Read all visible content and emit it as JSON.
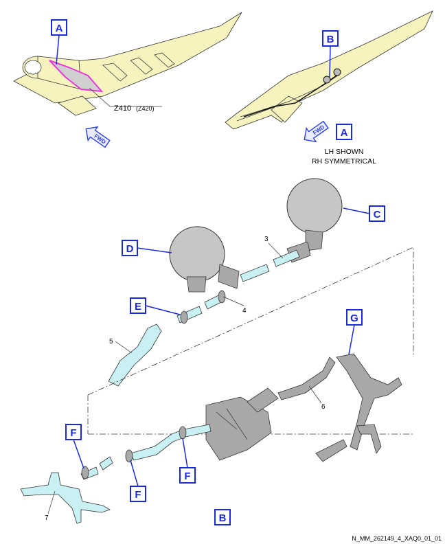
{
  "callouts": {
    "a_top": "A",
    "b_top": "B",
    "a_view": "A",
    "c": "C",
    "d": "D",
    "e": "E",
    "g": "G",
    "f1": "F",
    "f2": "F",
    "f3": "F",
    "b_view": "B"
  },
  "zone_label": "Z410",
  "zone_alt": "(Z420)",
  "fwd_label": "FWD",
  "view_note": {
    "line1": "LH SHOWN",
    "line2": "RH SYMMETRICAL"
  },
  "item_numbers": {
    "n3": "3",
    "n4": "4",
    "n5": "5",
    "n6": "6",
    "n7": "7"
  },
  "figure_id": "N_MM_262149_4_XAQ0_01_01",
  "colors": {
    "callout_blue": "#1a2bd6",
    "wing_yellow": "#f6f3bf",
    "duct_cyan": "#c9f1f3",
    "highlight_magenta": "#e43ad8",
    "duct_grey": "#a8a8a8"
  }
}
